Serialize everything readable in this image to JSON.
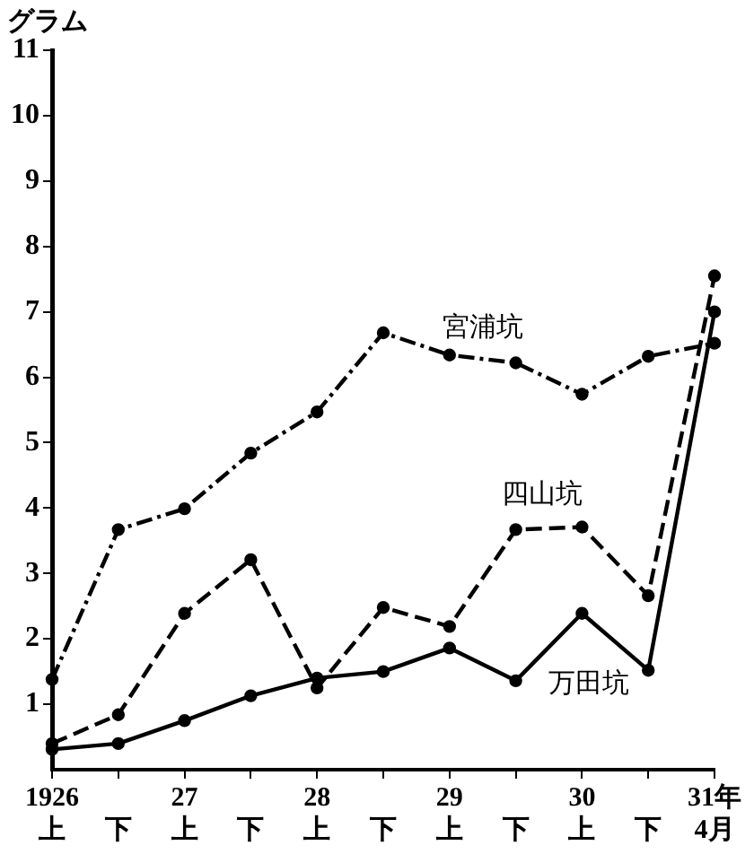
{
  "chart_data": {
    "type": "line",
    "ylabel": "グラム",
    "categories": [
      "1926\n上",
      "下",
      "27\n上",
      "下",
      "28\n上",
      "下",
      "29\n上",
      "下",
      "30\n上",
      "下",
      "31年\n4月"
    ],
    "series": [
      {
        "name": "宮浦坑",
        "color": "#000000",
        "line_style": "dashdot",
        "values": [
          1.38,
          3.67,
          3.99,
          4.84,
          5.47,
          6.68,
          6.34,
          6.22,
          5.74,
          6.32,
          6.52
        ]
      },
      {
        "name": "四山坑",
        "color": "#000000",
        "line_style": "dashed",
        "values": [
          0.4,
          0.84,
          2.39,
          3.21,
          1.25,
          2.48,
          2.19,
          3.67,
          3.71,
          2.66,
          7.55
        ]
      },
      {
        "name": "万田坑",
        "color": "#000000",
        "line_style": "solid",
        "values": [
          0.31,
          0.4,
          0.75,
          1.13,
          1.4,
          1.5,
          1.86,
          1.36,
          2.39,
          1.52,
          7.0
        ]
      }
    ],
    "ylim": [
      0,
      11
    ],
    "yticks": [
      1,
      2,
      3,
      4,
      5,
      6,
      7,
      8,
      9,
      10,
      11
    ],
    "grid": false,
    "legend": false,
    "marker": "circle"
  }
}
